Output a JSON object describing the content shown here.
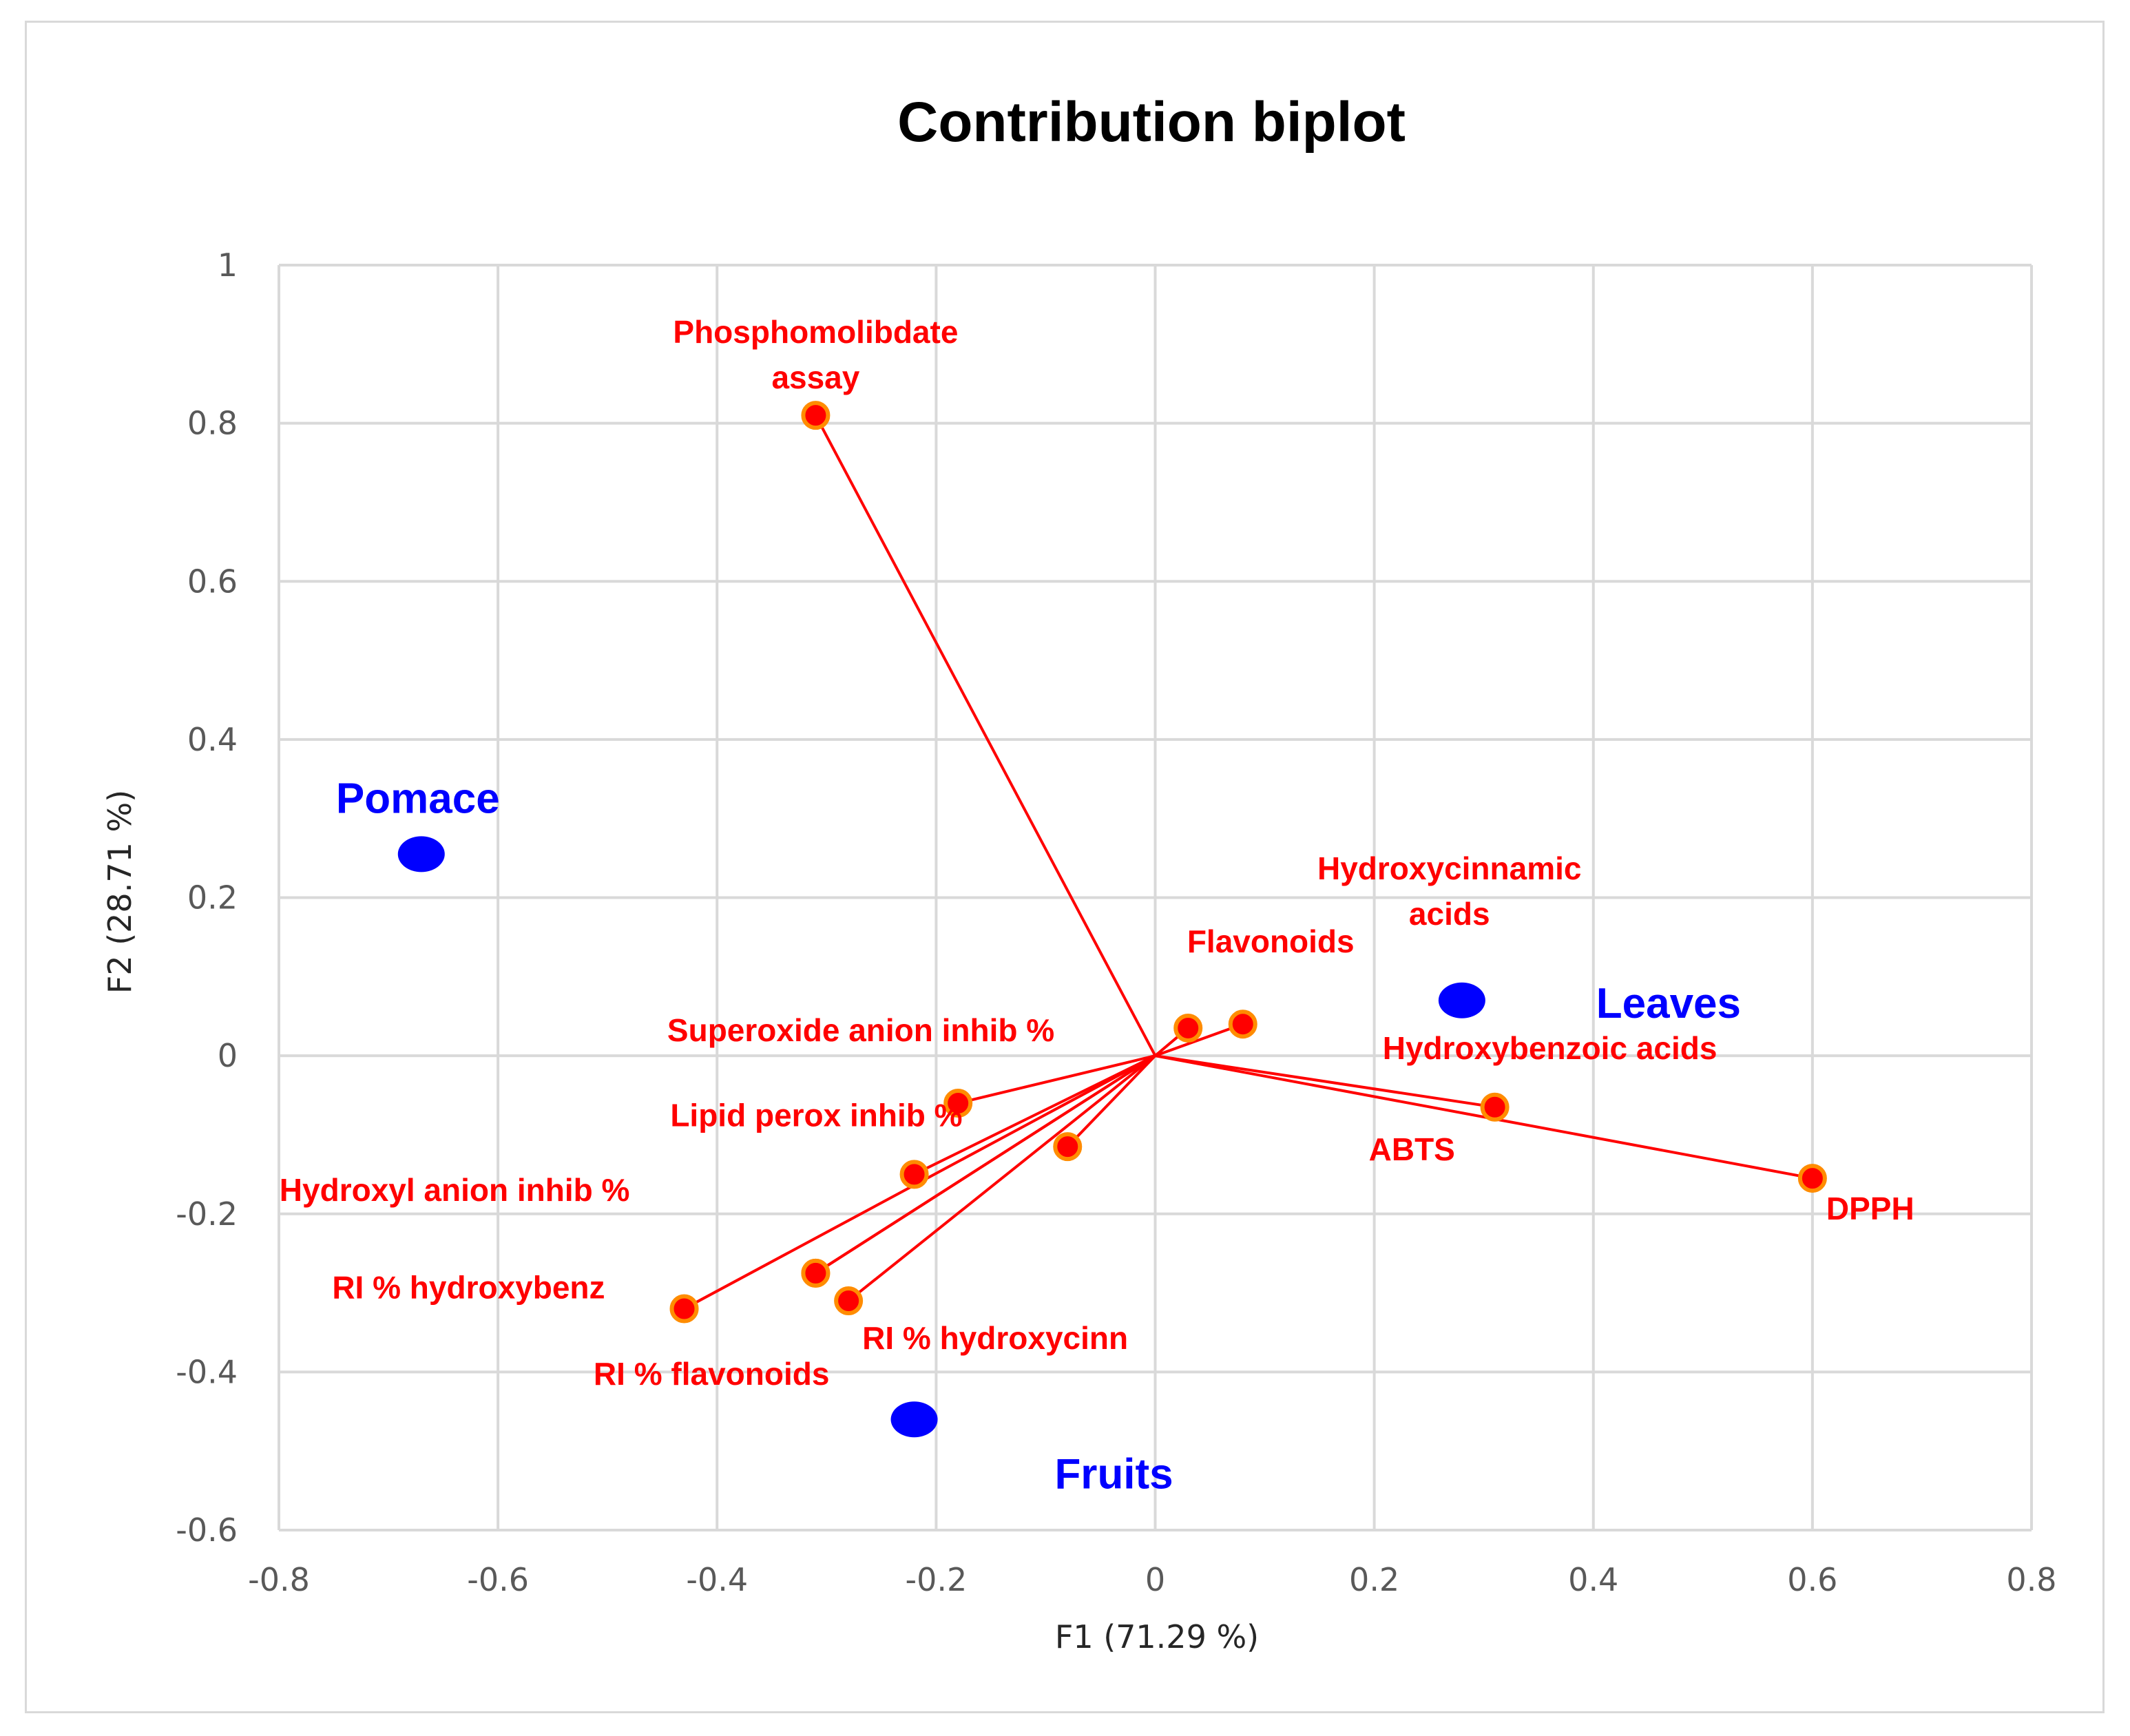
{
  "chart_data": {
    "type": "scatter",
    "subtype": "PCA contribution biplot",
    "title": "Contribution biplot",
    "xlabel": "F1 (71.29 %)",
    "ylabel": "F2 (28.71 %)",
    "xlim": [
      -0.8,
      0.8
    ],
    "ylim": [
      -0.6,
      1
    ],
    "xticks": [
      -0.8,
      -0.6,
      -0.4,
      -0.2,
      0,
      0.2,
      0.4,
      0.6,
      0.8
    ],
    "yticks": [
      -0.6,
      -0.4,
      -0.2,
      0,
      0.2,
      0.4,
      0.6,
      0.8,
      1
    ],
    "xtick_labels": [
      "-0.8",
      "-0.6",
      "-0.4",
      "-0.2",
      "0",
      "0.2",
      "0.4",
      "0.6",
      "0.8"
    ],
    "ytick_labels": [
      "-0.6",
      "-0.4",
      "-0.2",
      "0",
      "0.2",
      "0.4",
      "0.6",
      "0.8",
      "1"
    ],
    "grid": true,
    "colors": {
      "variables": "#ff0000",
      "observations": "#0000ff",
      "grid": "#d9d9d9",
      "title": "#000000"
    },
    "variables": [
      {
        "name": "Phosphomolibdate assay",
        "lines": [
          "Phosphomolibdate",
          "assay"
        ],
        "x": -0.31,
        "y": 0.81
      },
      {
        "name": "Hydroxycinnamic acids",
        "lines": [
          "Hydroxycinnamic",
          "acids"
        ],
        "x": 0.08,
        "y": 0.04
      },
      {
        "name": "Flavonoids",
        "lines": [
          "Flavonoids"
        ],
        "x": 0.03,
        "y": 0.035
      },
      {
        "name": "Hydroxybenzoic acids",
        "lines": [
          "Hydroxybenzoic acids"
        ],
        "x": 0.31,
        "y": -0.065
      },
      {
        "name": "ABTS",
        "lines": [
          "ABTS"
        ],
        "x": -0.08,
        "y": -0.115
      },
      {
        "name": "DPPH",
        "lines": [
          "DPPH"
        ],
        "x": 0.6,
        "y": -0.155
      },
      {
        "name": "Superoxide anion inhib %",
        "lines": [
          "Superoxide anion inhib %"
        ],
        "x": -0.18,
        "y": -0.06
      },
      {
        "name": "Lipid perox inhib %",
        "lines": [
          "Lipid perox inhib %"
        ],
        "x": -0.22,
        "y": -0.15
      },
      {
        "name": "Hydroxyl anion inhib %",
        "lines": [
          "Hydroxyl anion inhib %"
        ],
        "x": -0.31,
        "y": -0.275
      },
      {
        "name": "RI % hydroxybenz",
        "lines": [
          "RI % hydroxybenz"
        ],
        "x": -0.43,
        "y": -0.32
      },
      {
        "name": "RI % hydroxycinn",
        "lines": [
          "RI % hydroxycinn"
        ],
        "x": -0.28,
        "y": -0.31
      },
      {
        "name": "RI % flavonoids",
        "lines": [
          "RI % flavonoids"
        ],
        "x": -0.31,
        "y": -0.275
      }
    ],
    "observations": [
      {
        "name": "Pomace",
        "x": -0.67,
        "y": 0.255
      },
      {
        "name": "Leaves",
        "x": 0.28,
        "y": 0.07
      },
      {
        "name": "Fruits",
        "x": -0.22,
        "y": -0.46
      }
    ]
  }
}
